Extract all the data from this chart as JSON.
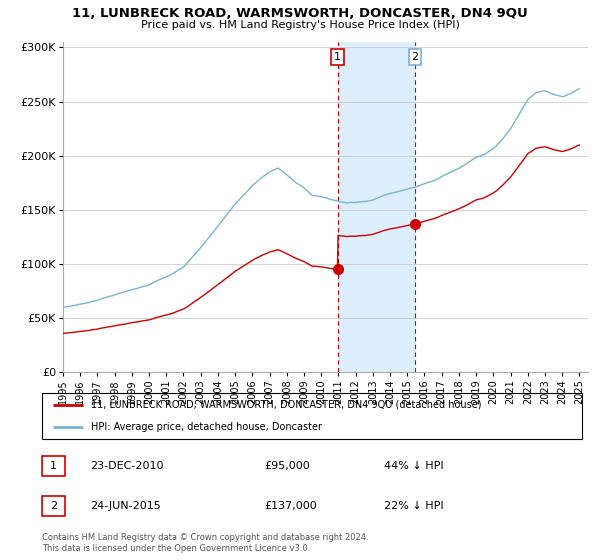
{
  "title": "11, LUNBRECK ROAD, WARMSWORTH, DONCASTER, DN4 9QU",
  "subtitle": "Price paid vs. HM Land Registry's House Price Index (HPI)",
  "ylabel_ticks": [
    "£0",
    "£50K",
    "£100K",
    "£150K",
    "£200K",
    "£250K",
    "£300K"
  ],
  "ytick_vals": [
    0,
    50000,
    100000,
    150000,
    200000,
    250000,
    300000
  ],
  "ylim": [
    0,
    305000
  ],
  "hpi_color": "#7ab3d4",
  "property_color": "#cc0000",
  "shaded_color": "#ddeeff",
  "sale1_x": 2010.958,
  "sale1_y": 95000,
  "sale2_x": 2015.458,
  "sale2_y": 137000,
  "legend_property": "11, LUNBRECK ROAD, WARMSWORTH, DONCASTER, DN4 9QU (detached house)",
  "legend_hpi": "HPI: Average price, detached house, Doncaster",
  "footnote": "Contains HM Land Registry data © Crown copyright and database right 2024.\nThis data is licensed under the Open Government Licence v3.0.",
  "table_rows": [
    [
      "1",
      "23-DEC-2010",
      "£95,000",
      "44% ↓ HPI"
    ],
    [
      "2",
      "24-JUN-2015",
      "£137,000",
      "22% ↓ HPI"
    ]
  ],
  "xmin": 1995,
  "xmax": 2025.5,
  "annotation1_border": "#cc0000",
  "annotation2_border": "#7ab3d4"
}
